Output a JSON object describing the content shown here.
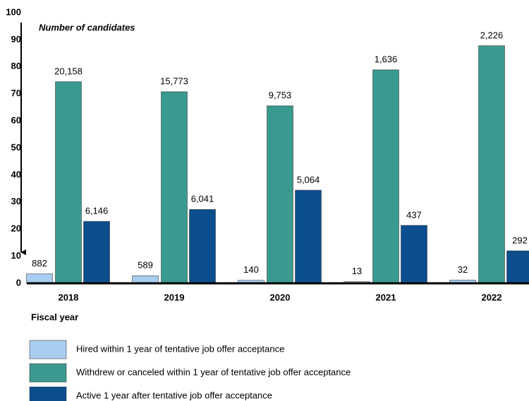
{
  "chart_data": {
    "type": "bar",
    "annotation": "Number of candidates",
    "x_label": "Fiscal year",
    "categories": [
      "2018",
      "2019",
      "2020",
      "2021",
      "2022"
    ],
    "ylim": [
      0,
      100
    ],
    "yticks": [
      0,
      10,
      20,
      30,
      40,
      50,
      60,
      70,
      80,
      90,
      100
    ],
    "series": [
      {
        "name": "Hired within 1 year of tentative job offer acceptance",
        "color": "#a8cdf0",
        "values": [
          3.5,
          2.8,
          1.1,
          0.6,
          1.2
        ],
        "count_labels": [
          "882",
          "589",
          "140",
          "13",
          "32"
        ]
      },
      {
        "name": "Withdrew or canceled within 1 year of tentative job offer acceptance",
        "color": "#3b9a90",
        "values": [
          74.5,
          70.8,
          65.6,
          78.9,
          87.8
        ],
        "count_labels": [
          "20,158",
          "15,773",
          "9,753",
          "1,636",
          "2,226"
        ]
      },
      {
        "name": "Active 1 year after tentative job offer acceptance",
        "color": "#0b4e8d",
        "values": [
          22.9,
          27.3,
          34.4,
          21.4,
          12.0
        ],
        "count_labels": [
          "6,146",
          "6,041",
          "5,064",
          "437",
          "292"
        ]
      }
    ]
  }
}
